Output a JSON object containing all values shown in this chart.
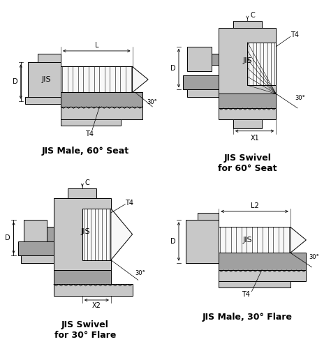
{
  "bg_color": "#ffffff",
  "line_color": "#000000",
  "fill_light": "#c8c8c8",
  "fill_medium": "#a0a0a0",
  "fill_white": "#f8f8f8",
  "fill_dark": "#888888",
  "labels": {
    "top_left": "JIS Male, 60° Seat",
    "top_right_l1": "JIS Swivel",
    "top_right_l2": "for 60° Seat",
    "bot_left_l1": "JIS Swivel",
    "bot_left_l2": "for 30° Flare",
    "bot_right": "JIS Male, 30° Flare"
  },
  "label_fontsize": 9,
  "jis_fontsize": 8,
  "dim_fontsize": 7
}
